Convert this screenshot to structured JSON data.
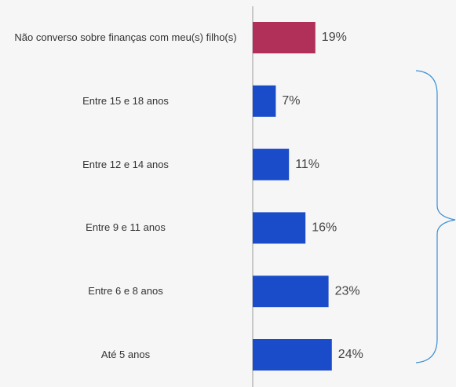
{
  "chart_data": {
    "type": "bar",
    "categories": [
      "Não converso sobre finanças com meu(s) filho(s)",
      "Entre 15 e 18 anos",
      "Entre 12 e 14 anos",
      "Entre 9 e 11 anos",
      "Entre 6 e 8 anos",
      "Até 5 anos"
    ],
    "values": [
      19,
      7,
      11,
      16,
      23,
      24
    ],
    "value_labels": [
      "19%",
      "7%",
      "11%",
      "16%",
      "23%",
      "24%"
    ],
    "colors": [
      "#b0305a",
      "#1a4bc9",
      "#1a4bc9",
      "#1a4bc9",
      "#1a4bc9",
      "#1a4bc9"
    ]
  }
}
